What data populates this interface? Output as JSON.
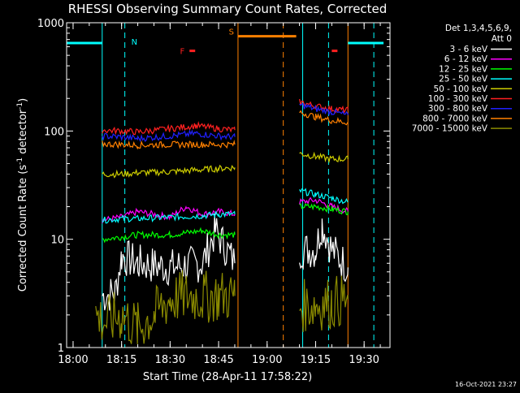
{
  "footer_timestamp": "16-Oct-2021 23:27",
  "chart_data": {
    "type": "line",
    "title": "RHESSI Observing Summary Count Rates, Corrected",
    "xlabel": "Start Time (28-Apr-11 17:58:22)",
    "ylabel": "Corrected Count Rate (s⁻¹ detector⁻¹)",
    "ylabel_main": "Corrected Count Rate (s",
    "ylabel_sup1": "-1",
    "ylabel_mid": " detector",
    "ylabel_sup2": "-1",
    "ylabel_end": ")",
    "y_scale": "log",
    "ylim": [
      1,
      1000
    ],
    "xlim": [
      "17:58",
      "19:38"
    ],
    "x_ticks": [
      "18:00",
      "18:15",
      "18:30",
      "18:45",
      "19:00",
      "19:15",
      "19:30"
    ],
    "y_ticks": [
      "1",
      "10",
      "100",
      "1000"
    ],
    "legend": {
      "position": "right",
      "header_line1": "Det 1,3,4,5,6,9,",
      "header_line2": "Att 0"
    },
    "series": [
      {
        "name": "3 - 6 keV",
        "color": "#ffffff",
        "segments": [
          {
            "x": [
              "18:09",
              "18:13",
              "18:15",
              "18:20",
              "18:30",
              "18:40",
              "18:44",
              "18:50"
            ],
            "y": [
              3,
              3.2,
              7,
              6,
              5.5,
              6,
              12,
              6
            ]
          },
          {
            "x": [
              "19:10",
              "19:15",
              "19:17",
              "19:20",
              "19:25"
            ],
            "y": [
              8,
              8,
              14,
              8,
              5.5
            ]
          }
        ]
      },
      {
        "name": "6 - 12 keV",
        "color": "#ff00ff",
        "segments": [
          {
            "x": [
              "18:09",
              "18:15",
              "18:20",
              "18:30",
              "18:35",
              "18:40",
              "18:45",
              "18:50"
            ],
            "y": [
              15,
              16,
              18,
              16,
              20,
              17,
              18,
              17
            ]
          },
          {
            "x": [
              "19:10",
              "19:15",
              "19:20",
              "19:25"
            ],
            "y": [
              22,
              23,
              20,
              18
            ]
          }
        ]
      },
      {
        "name": "12 - 25 keV",
        "color": "#00ff00",
        "segments": [
          {
            "x": [
              "18:09",
              "18:15",
              "18:20",
              "18:30",
              "18:40",
              "18:45",
              "18:50"
            ],
            "y": [
              10,
              10.5,
              11,
              11,
              12,
              11,
              11
            ]
          },
          {
            "x": [
              "19:10",
              "19:15",
              "19:20",
              "19:25"
            ],
            "y": [
              20,
              20,
              19,
              18
            ]
          }
        ]
      },
      {
        "name": "25 - 50 keV",
        "color": "#00ffff",
        "segments": [
          {
            "x": [
              "18:09",
              "18:15",
              "18:20",
              "18:30",
              "18:40",
              "18:45",
              "18:50"
            ],
            "y": [
              15,
              15.5,
              15.5,
              16,
              16.5,
              17,
              17
            ]
          },
          {
            "x": [
              "19:10",
              "19:15",
              "19:20",
              "19:25"
            ],
            "y": [
              28,
              26,
              24,
              22
            ]
          }
        ]
      },
      {
        "name": "50 - 100 keV",
        "color": "#cccc00",
        "segments": [
          {
            "x": [
              "18:09",
              "18:15",
              "18:20",
              "18:30",
              "18:40",
              "18:45",
              "18:50"
            ],
            "y": [
              40,
              40,
              41,
              42,
              44,
              45,
              46
            ]
          },
          {
            "x": [
              "19:10",
              "19:15",
              "19:20",
              "19:25"
            ],
            "y": [
              62,
              58,
              55,
              55
            ]
          }
        ]
      },
      {
        "name": "100 - 300 keV",
        "color": "#ff2020",
        "segments": [
          {
            "x": [
              "18:09",
              "18:15",
              "18:20",
              "18:30",
              "18:38",
              "18:45",
              "18:50"
            ],
            "y": [
              102,
              100,
              98,
              105,
              112,
              105,
              102
            ]
          },
          {
            "x": [
              "19:10",
              "19:15",
              "19:20",
              "19:25"
            ],
            "y": [
              185,
              170,
              160,
              155
            ]
          }
        ]
      },
      {
        "name": "300 - 800 keV",
        "color": "#2020ff",
        "segments": [
          {
            "x": [
              "18:09",
              "18:15",
              "18:20",
              "18:30",
              "18:38",
              "18:45",
              "18:50"
            ],
            "y": [
              90,
              88,
              85,
              90,
              95,
              90,
              88
            ]
          },
          {
            "x": [
              "19:10",
              "19:15",
              "19:20",
              "19:25"
            ],
            "y": [
              175,
              160,
              150,
              140
            ]
          }
        ]
      },
      {
        "name": "800 - 7000 keV",
        "color": "#ff8000",
        "segments": [
          {
            "x": [
              "18:09",
              "18:15",
              "18:20",
              "18:30",
              "18:40",
              "18:50"
            ],
            "y": [
              76,
              75,
              74,
              75,
              75,
              75
            ]
          },
          {
            "x": [
              "19:10",
              "19:15",
              "19:20",
              "19:25"
            ],
            "y": [
              150,
              135,
              125,
              120
            ]
          }
        ]
      },
      {
        "name": "7000 - 15000 keV",
        "color": "#8b8b00",
        "segments": [
          {
            "x": [
              "18:07",
              "18:10",
              "18:15",
              "18:20",
              "18:25",
              "18:30",
              "18:35",
              "18:40",
              "18:45",
              "18:50"
            ],
            "y": [
              2,
              1.7,
              2,
              1.5,
              2,
              2.8,
              3,
              2.9,
              3,
              3
            ]
          },
          {
            "x": [
              "19:10",
              "19:15",
              "19:20",
              "19:25"
            ],
            "y": [
              2.4,
              2.5,
              2.6,
              2.8
            ]
          }
        ]
      }
    ],
    "attenuator_bars": [
      {
        "label": "",
        "color": "#00ffff",
        "x": [
          "17:58",
          "18:09"
        ],
        "y": 650
      },
      {
        "label": "S",
        "color": "#ff8000",
        "x": [
          "18:51",
          "19:09"
        ],
        "y": 750
      },
      {
        "label": "",
        "color": "#00ffff",
        "x": [
          "19:25",
          "19:36"
        ],
        "y": 650
      }
    ],
    "flag_markers": [
      {
        "label": "F",
        "color": "#ff2020",
        "x": [
          "18:36",
          "18:37"
        ],
        "y": 550
      },
      {
        "label": "",
        "color": "#ff2020",
        "x": [
          "19:20",
          "19:21"
        ],
        "y": 550
      }
    ],
    "annotation_N": "N",
    "vertical_lines": [
      {
        "x": "18:09",
        "color": "#00ffff",
        "style": "solid"
      },
      {
        "x": "18:16",
        "color": "#00ffff",
        "style": "dashed"
      },
      {
        "x": "18:51",
        "color": "#ff8000",
        "style": "solid"
      },
      {
        "x": "19:05",
        "color": "#ff8000",
        "style": "dashed"
      },
      {
        "x": "19:11",
        "color": "#00ffff",
        "style": "solid"
      },
      {
        "x": "19:19",
        "color": "#00ffff",
        "style": "dashed"
      },
      {
        "x": "19:25",
        "color": "#ff8000",
        "style": "solid"
      },
      {
        "x": "19:33",
        "color": "#00ffff",
        "style": "dashed"
      }
    ]
  }
}
